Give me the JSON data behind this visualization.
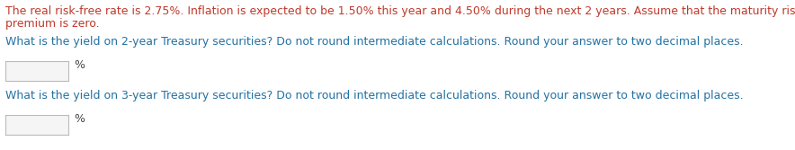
{
  "bg_color": "#ffffff",
  "text_color_main": "#c0392b",
  "text_color_question": "#2471a3",
  "text_color_percent": "#444444",
  "line1": "The real risk-free rate is 2.75%. Inflation is expected to be 1.50% this year and 4.50% during the next 2 years. Assume that the maturity risk",
  "line2": "premium is zero.",
  "question1": "What is the yield on 2-year Treasury securities? Do not round intermediate calculations. Round your answer to two decimal places.",
  "question2": "What is the yield on 3-year Treasury securities? Do not round intermediate calculations. Round your answer to two decimal places.",
  "percent_label": "%",
  "box_color": "#f5f5f5",
  "box_edge_color": "#bbbbbb",
  "font_size": 9.0,
  "fig_width": 8.84,
  "fig_height": 1.67,
  "dpi": 100
}
